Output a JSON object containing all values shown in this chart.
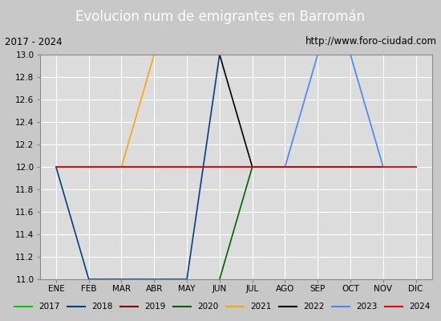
{
  "title": "Evolucion num de emigrantes en Barromán",
  "subtitle_left": "2017 - 2024",
  "subtitle_right": "http://www.foro-ciudad.com",
  "months": [
    "ENE",
    "FEB",
    "MAR",
    "ABR",
    "MAY",
    "JUN",
    "JUL",
    "AGO",
    "SEP",
    "OCT",
    "NOV",
    "DIC"
  ],
  "month_indices": [
    1,
    2,
    3,
    4,
    5,
    6,
    7,
    8,
    9,
    10,
    11,
    12
  ],
  "ylim": [
    11.0,
    13.0
  ],
  "yticks": [
    11.0,
    11.2,
    11.4,
    11.6,
    11.8,
    12.0,
    12.2,
    12.4,
    12.6,
    12.8,
    13.0
  ],
  "series": [
    {
      "year": "2017",
      "color": "#00cc00",
      "data": [
        [
          6,
          13
        ],
        [
          7,
          13
        ]
      ]
    },
    {
      "year": "2018",
      "color": "#003f8a",
      "data": [
        [
          1,
          12
        ],
        [
          2,
          11
        ],
        [
          5,
          11
        ],
        [
          6,
          13
        ]
      ]
    },
    {
      "year": "2019",
      "color": "#8b0000",
      "data": [
        [
          1,
          12
        ],
        [
          12,
          12
        ]
      ]
    },
    {
      "year": "2020",
      "color": "#006400",
      "data": [
        [
          6,
          11
        ],
        [
          7,
          12
        ]
      ]
    },
    {
      "year": "2021",
      "color": "#ffa500",
      "data": [
        [
          3,
          12
        ],
        [
          4,
          13
        ],
        [
          12,
          13
        ]
      ]
    },
    {
      "year": "2022",
      "color": "#000000",
      "data": [
        [
          1,
          13
        ],
        [
          6,
          13
        ],
        [
          7,
          12
        ],
        [
          12,
          12
        ]
      ]
    },
    {
      "year": "2023",
      "color": "#4488ff",
      "data": [
        [
          8,
          12
        ],
        [
          9,
          13
        ],
        [
          10,
          13
        ],
        [
          11,
          12
        ],
        [
          12,
          12
        ]
      ]
    },
    {
      "year": "2024",
      "color": "#ff0000",
      "data": [
        [
          1,
          12
        ],
        [
          12,
          12
        ]
      ]
    }
  ],
  "bg_color": "#c8c8c8",
  "plot_bg_color": "#dcdcdc",
  "title_bg_color": "#4472c4",
  "title_text_color": "#ffffff",
  "grid_color": "#ffffff",
  "legend_bg": "#f0f0f0",
  "subtitle_bg": "#e8e8e8",
  "figsize": [
    5.5,
    4.0
  ],
  "dpi": 100
}
